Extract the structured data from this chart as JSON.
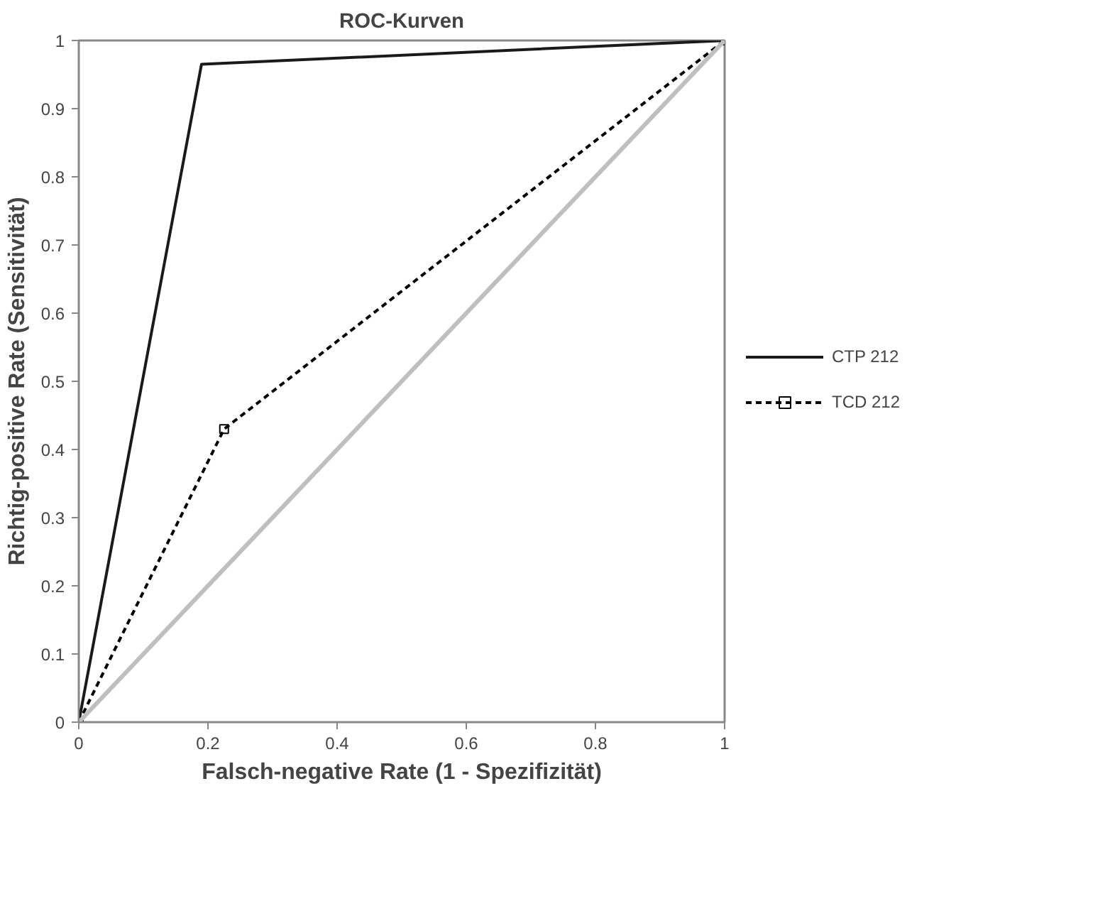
{
  "chart_data": {
    "type": "line",
    "title": "ROC-Kurven",
    "xlabel": "Falsch-negative Rate (1 - Spezifizität)",
    "ylabel": "Richtig-positive Rate (Sensitivität)",
    "xlim": [
      0,
      1
    ],
    "ylim": [
      0,
      1
    ],
    "xticks": [
      0,
      0.2,
      0.4,
      0.6,
      0.8,
      1
    ],
    "yticks": [
      0,
      0.1,
      0.2,
      0.3,
      0.4,
      0.5,
      0.6,
      0.7,
      0.8,
      0.9,
      1
    ],
    "grid": false,
    "legend": "right",
    "series": [
      {
        "name": "CTP 212",
        "color": "#1a1a1a",
        "x": [
          0,
          0.19,
          1
        ],
        "values": [
          0,
          0.965,
          1
        ],
        "marker": "none",
        "line_style": "solid"
      },
      {
        "name": "TCD 212",
        "color": "#000000",
        "x": [
          0,
          0.225,
          1
        ],
        "values": [
          0,
          0.43,
          1
        ],
        "marker": "square",
        "line_style": "dashed"
      },
      {
        "color": "#bfbfbf",
        "x": [
          0,
          1
        ],
        "values": [
          0,
          1
        ],
        "marker": "none",
        "line_style": "solid"
      }
    ]
  }
}
